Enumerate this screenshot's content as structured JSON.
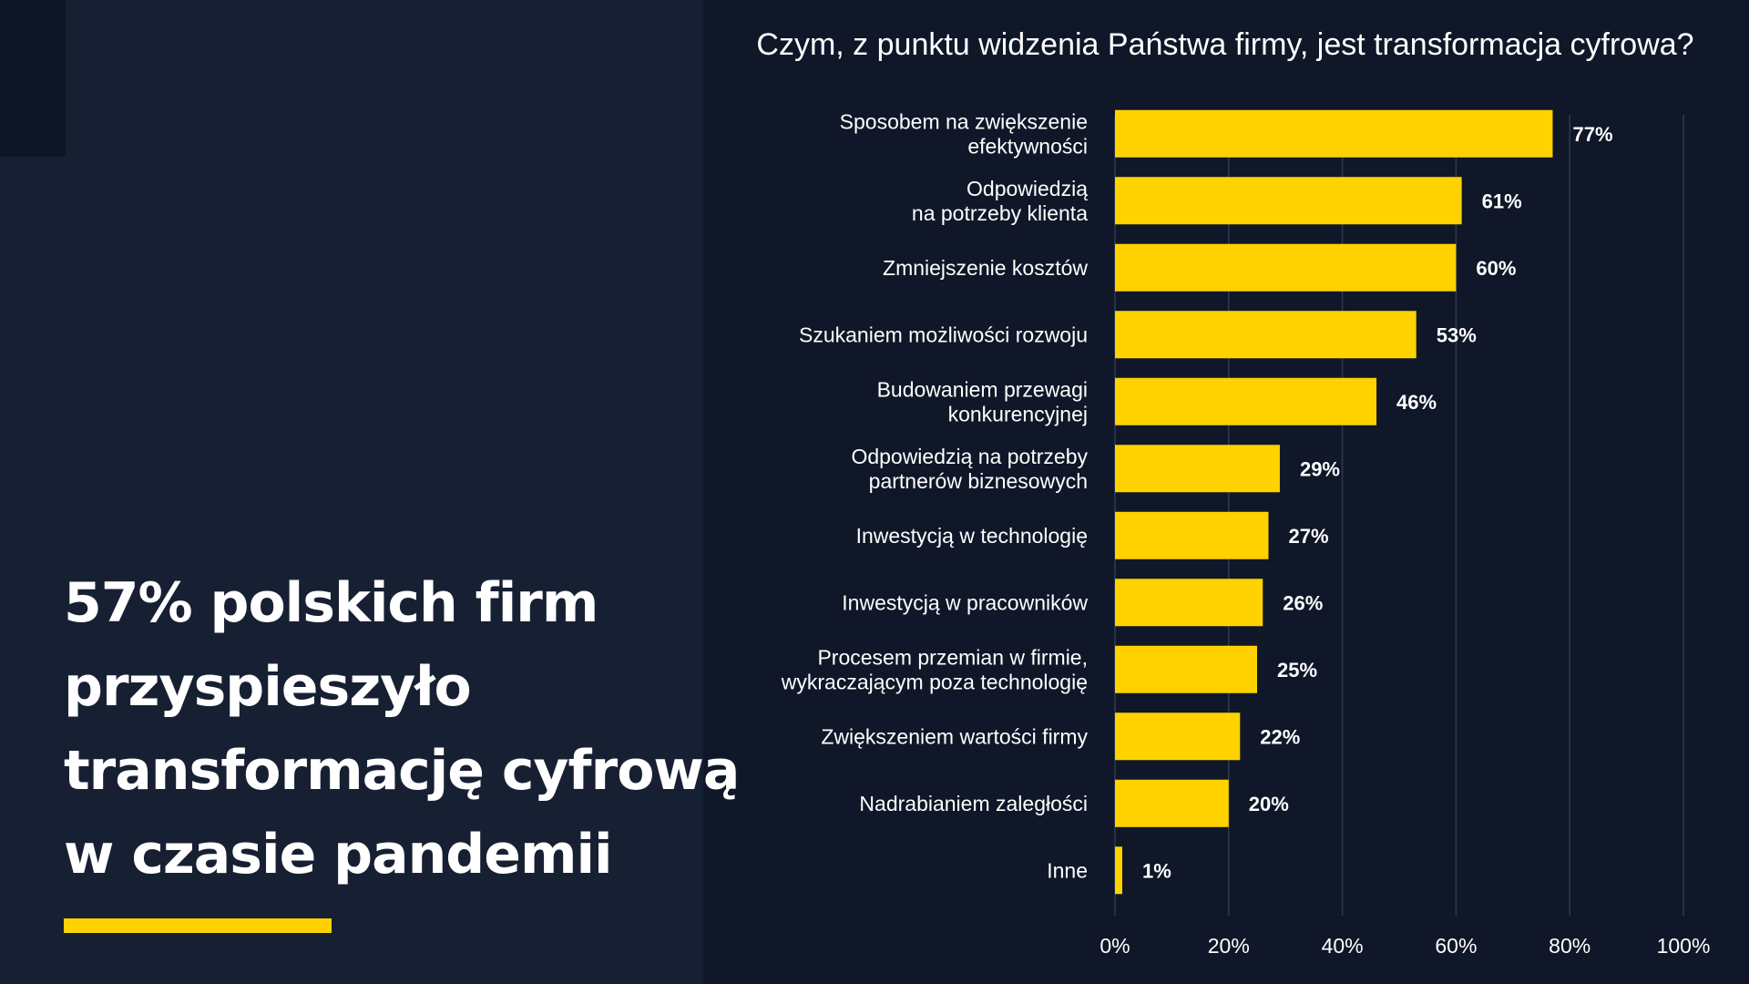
{
  "headline": {
    "lines": [
      "57% polskich firm",
      "przyspieszyło",
      "transformację cyfrową",
      "w czasie pandemii"
    ]
  },
  "colors": {
    "background": "#172033",
    "chart_panel": "#0f1728",
    "bar": "#ffd200",
    "grid": "#2e3a52",
    "text": "#ffffff"
  },
  "chart_data": {
    "type": "bar",
    "orientation": "horizontal",
    "title": "Czym, z punktu widzenia Państwa firmy, jest transformacja cyfrowa?",
    "categories": [
      [
        "Sposobem na zwiększenie",
        "efektywności"
      ],
      [
        "Odpowiedzią",
        "na potrzeby klienta"
      ],
      [
        "Zmniejszenie kosztów"
      ],
      [
        "Szukaniem możliwości rozwoju"
      ],
      [
        "Budowaniem przewagi",
        "konkurencyjnej"
      ],
      [
        "Odpowiedzią na potrzeby",
        "partnerów biznesowych"
      ],
      [
        "Inwestycją w technologię"
      ],
      [
        "Inwestycją w pracowników"
      ],
      [
        "Procesem przemian w firmie,",
        "wykraczającym poza technologię"
      ],
      [
        "Zwiększeniem wartości firmy"
      ],
      [
        "Nadrabianiem zaległości"
      ],
      [
        "Inne"
      ]
    ],
    "values": [
      77,
      61,
      60,
      53,
      46,
      29,
      27,
      26,
      25,
      22,
      20,
      1
    ],
    "value_labels": [
      "77%",
      "61%",
      "60%",
      "53%",
      "46%",
      "29%",
      "27%",
      "26%",
      "25%",
      "22%",
      "20%",
      "1%"
    ],
    "xlim": [
      0,
      100
    ],
    "xticks": [
      0,
      20,
      40,
      60,
      80,
      100
    ],
    "xtick_labels": [
      "0%",
      "20%",
      "40%",
      "60%",
      "80%",
      "100%"
    ],
    "grid": true,
    "legend": "none"
  }
}
